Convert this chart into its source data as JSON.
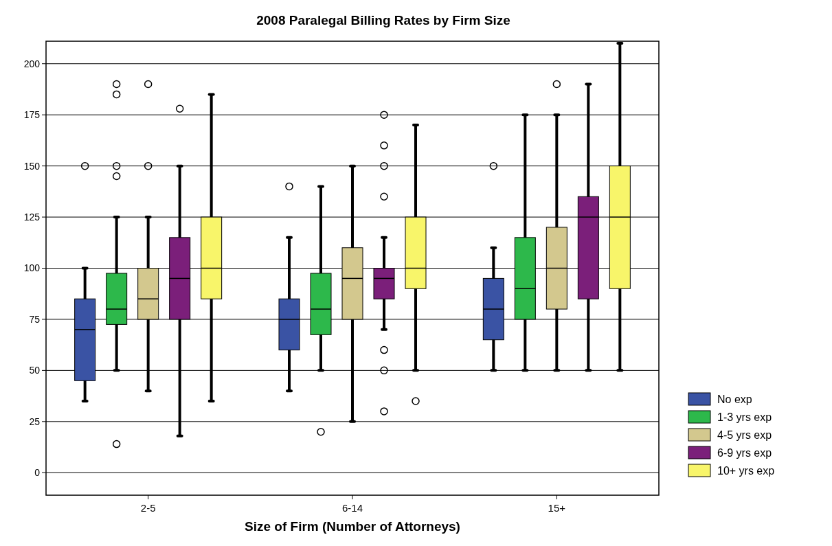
{
  "chart_data": {
    "type": "box",
    "title": "2008 Paralegal Billing Rates by Firm Size",
    "xlabel": "Size of Firm (Number of Attorneys)",
    "categories": [
      "2-5",
      "6-14",
      "15+"
    ],
    "ylim": [
      -11,
      211
    ],
    "yticks": [
      0,
      25,
      50,
      75,
      100,
      125,
      150,
      175,
      200
    ],
    "grid": "y",
    "legend": "right",
    "series": [
      {
        "name": "No exp",
        "color": "#3a53a4",
        "boxes": [
          {
            "low": 35,
            "q1": 45,
            "median": 70,
            "q3": 85,
            "high": 100,
            "outliers": [
              150
            ]
          },
          {
            "low": 40,
            "q1": 60,
            "median": 75,
            "q3": 85,
            "high": 115,
            "outliers": [
              140
            ]
          },
          {
            "low": 50,
            "q1": 65,
            "median": 80,
            "q3": 95,
            "high": 110,
            "outliers": [
              150
            ]
          }
        ]
      },
      {
        "name": "1-3 yrs exp",
        "color": "#2db84b",
        "boxes": [
          {
            "low": 50,
            "q1": 72.5,
            "median": 80,
            "q3": 97.5,
            "high": 125,
            "outliers": [
              190,
              185,
              150,
              145,
              14
            ]
          },
          {
            "low": 50,
            "q1": 67.5,
            "median": 80,
            "q3": 97.5,
            "high": 140,
            "outliers": [
              20
            ]
          },
          {
            "low": 50,
            "q1": 75,
            "median": 90,
            "q3": 115,
            "high": 175
          }
        ]
      },
      {
        "name": "4-5 yrs exp",
        "color": "#d3c88e",
        "boxes": [
          {
            "low": 40,
            "q1": 75,
            "median": 85,
            "q3": 100,
            "high": 125,
            "outliers": [
              190,
              150
            ]
          },
          {
            "low": 25,
            "q1": 75,
            "median": 95,
            "q3": 110,
            "high": 150
          },
          {
            "low": 50,
            "q1": 80,
            "median": 100,
            "q3": 120,
            "high": 175,
            "outliers": [
              190
            ]
          }
        ]
      },
      {
        "name": "6-9 yrs exp",
        "color": "#7b1f7a",
        "boxes": [
          {
            "low": 18,
            "q1": 75,
            "median": 95,
            "q3": 115,
            "high": 150,
            "outliers": [
              178
            ]
          },
          {
            "low": 70,
            "q1": 85,
            "median": 95,
            "q3": 100,
            "high": 115,
            "outliers": [
              175,
              160,
              150,
              135,
              60,
              50,
              30
            ]
          },
          {
            "low": 50,
            "q1": 85,
            "median": 125,
            "q3": 135,
            "high": 190
          }
        ]
      },
      {
        "name": "10+ yrs exp",
        "color": "#f8f56a",
        "boxes": [
          {
            "low": 35,
            "q1": 85,
            "median": 100,
            "q3": 125,
            "high": 185
          },
          {
            "low": 50,
            "q1": 90,
            "median": 100,
            "q3": 125,
            "high": 170,
            "outliers": [
              35
            ]
          },
          {
            "low": 50,
            "q1": 90,
            "median": 125,
            "q3": 150,
            "high": 210
          }
        ]
      }
    ]
  }
}
